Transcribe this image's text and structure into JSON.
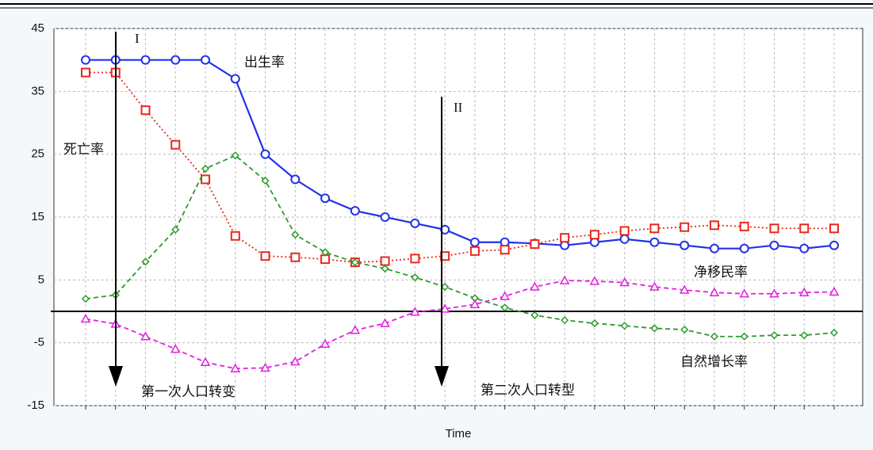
{
  "chart_data": {
    "type": "line",
    "xlabel": "Time",
    "categories": [
      null,
      null,
      null,
      null,
      null,
      null,
      null,
      null,
      null,
      null,
      null,
      null,
      null,
      null,
      null,
      null,
      null,
      null,
      null,
      null,
      null,
      null,
      null,
      null,
      null,
      null
    ],
    "ylim": [
      -15,
      45
    ],
    "yticks": [
      -15,
      -5,
      5,
      15,
      25,
      35,
      45
    ],
    "grid": true,
    "hline": 0,
    "series": [
      {
        "color": "#2233e6",
        "marker": "circle",
        "line": "solid",
        "values": [
          40,
          40,
          40,
          40,
          40,
          37,
          25,
          21,
          18,
          16,
          15,
          14,
          13,
          11,
          11,
          10.8,
          10.5,
          11,
          11.5,
          11,
          10.5,
          10,
          10,
          10.5,
          10,
          10.5
        ]
      },
      {
        "color": "#e8281e",
        "marker": "square",
        "line": "dotted",
        "values": [
          38,
          38,
          32,
          26.5,
          21,
          12,
          8.8,
          8.6,
          8.3,
          7.8,
          8,
          8.4,
          8.8,
          9.6,
          9.8,
          10.7,
          11.7,
          12.2,
          12.8,
          13.2,
          13.4,
          13.7,
          13.5,
          13.2,
          13.2,
          13.2
        ]
      },
      {
        "color": "#2a9a2a",
        "marker": "diamond",
        "line": "dashed",
        "values": [
          2,
          2.6,
          7.9,
          13,
          22.7,
          24.8,
          20.8,
          12.2,
          9.4,
          7.8,
          6.8,
          5.4,
          3.9,
          2.1,
          0.6,
          -0.6,
          -1.4,
          -1.9,
          -2.3,
          -2.7,
          -2.9,
          -4,
          -4,
          -3.8,
          -3.8,
          -3.4
        ]
      },
      {
        "color": "#e020e0",
        "marker": "triangle",
        "line": "dashed",
        "values": [
          -1.2,
          -2,
          -4,
          -6,
          -8.1,
          -9.1,
          -9,
          -8,
          -5.2,
          -3,
          -1.9,
          -0.1,
          0.4,
          1.1,
          2.4,
          3.9,
          4.9,
          4.8,
          4.6,
          3.9,
          3.4,
          3,
          2.8,
          2.8,
          3,
          3.1
        ]
      }
    ],
    "annotations": [
      "I",
      "II",
      "出生率",
      "死亡率",
      "净移民率",
      "自然增长率",
      "第一次人口转变",
      "第二次人口转型"
    ]
  }
}
